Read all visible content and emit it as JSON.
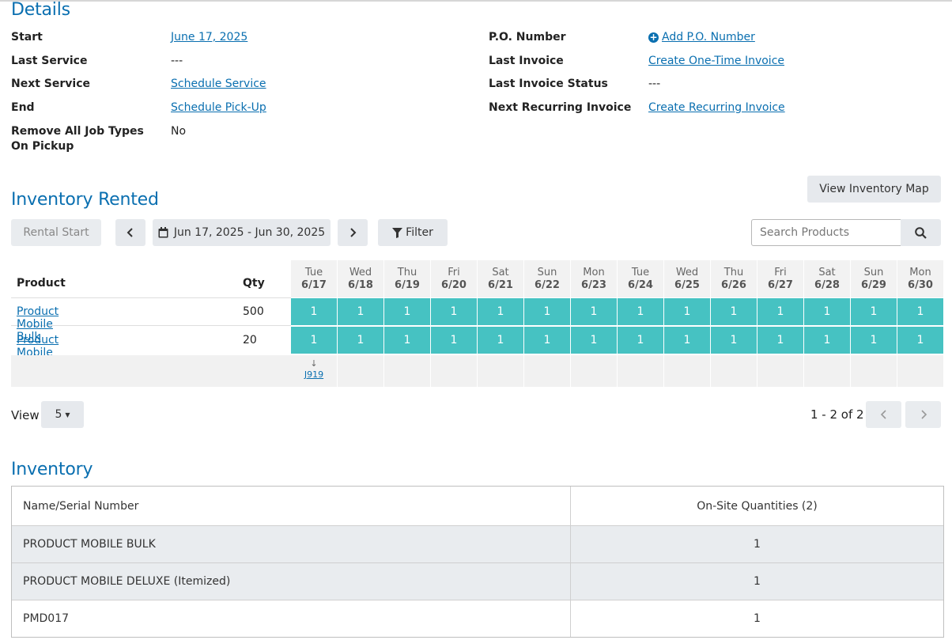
{
  "details": {
    "title": "Details",
    "left": [
      {
        "label": "Start",
        "value": "June 17, 2025",
        "link": true
      },
      {
        "label": "Last Service",
        "value": "---",
        "link": false
      },
      {
        "label": "Next Service",
        "value": "Schedule Service",
        "link": true
      },
      {
        "label": "End",
        "value": "Schedule Pick-Up",
        "link": true
      },
      {
        "label_line1": "Remove All Job Types",
        "label_line2": "On Pickup",
        "value": "No",
        "link": false
      }
    ],
    "right": [
      {
        "label": "P.O. Number",
        "value": "Add P.O. Number",
        "link": true
      },
      {
        "label": "Last Invoice",
        "value": "Create One-Time Invoice",
        "link": true
      },
      {
        "label": "Last Invoice Status",
        "value": "---",
        "link": false
      },
      {
        "label": "Next Recurring Invoice",
        "value": "Create Recurring Invoice",
        "link": true
      }
    ]
  },
  "rented": {
    "title": "Inventory Rented",
    "view_map_label": "View Inventory Map",
    "rental_start_label": "Rental Start",
    "date_range": "Jun 17, 2025 - Jun 30, 2025",
    "filter_label": "Filter",
    "search_placeholder": "Search Products",
    "col_product": "Product",
    "col_qty": "Qty",
    "days": [
      {
        "dow": "Tue",
        "date": "6/17"
      },
      {
        "dow": "Wed",
        "date": "6/18"
      },
      {
        "dow": "Thu",
        "date": "6/19"
      },
      {
        "dow": "Fri",
        "date": "6/20"
      },
      {
        "dow": "Sat",
        "date": "6/21"
      },
      {
        "dow": "Sun",
        "date": "6/22"
      },
      {
        "dow": "Mon",
        "date": "6/23"
      },
      {
        "dow": "Tue",
        "date": "6/24"
      },
      {
        "dow": "Wed",
        "date": "6/25"
      },
      {
        "dow": "Thu",
        "date": "6/26"
      },
      {
        "dow": "Fri",
        "date": "6/27"
      },
      {
        "dow": "Sat",
        "date": "6/28"
      },
      {
        "dow": "Sun",
        "date": "6/29"
      },
      {
        "dow": "Mon",
        "date": "6/30"
      }
    ],
    "rows": [
      {
        "product": "Product Mobile Bulk",
        "qty": "500",
        "cells": [
          "1",
          "1",
          "1",
          "1",
          "1",
          "1",
          "1",
          "1",
          "1",
          "1",
          "1",
          "1",
          "1",
          "1"
        ]
      },
      {
        "product": "Product Mobile Deluxe",
        "qty": "20",
        "cells": [
          "1",
          "1",
          "1",
          "1",
          "1",
          "1",
          "1",
          "1",
          "1",
          "1",
          "1",
          "1",
          "1",
          "1"
        ]
      }
    ],
    "job_arrow": "↓",
    "job_label": "J919",
    "view_label": "View",
    "per_page": "5",
    "pagination": "1 - 2 of 2",
    "cell_color": "#46c2c2"
  },
  "inventory": {
    "title": "Inventory",
    "col_name": "Name/Serial Number",
    "col_qty": "On-Site Quantities (2)",
    "rows": [
      {
        "name": "PRODUCT MOBILE BULK",
        "qty": "1"
      },
      {
        "name": "PRODUCT MOBILE DELUXE (Itemized)",
        "qty": "1"
      },
      {
        "name": "PMD017",
        "qty": "1"
      }
    ]
  },
  "colors": {
    "accent": "#0a6fb0",
    "teal": "#46c2c2"
  }
}
